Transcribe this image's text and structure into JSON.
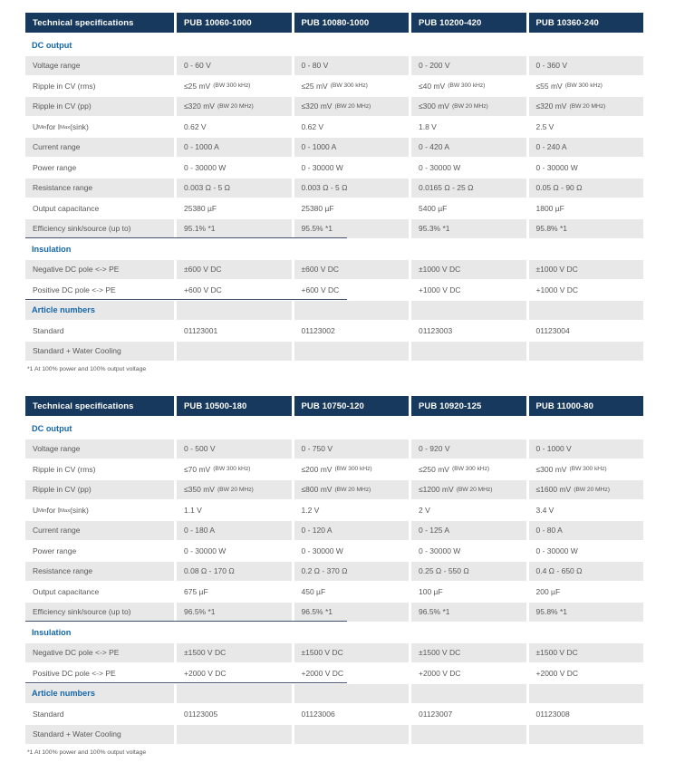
{
  "colors": {
    "header_bg": "#17395E",
    "section_text": "#1667A9",
    "body_text": "#58585A",
    "stripe_bg": "#E8E8E9",
    "rule_color": "#44536B"
  },
  "tables": [
    {
      "header": [
        "Technical specifications",
        "PUB 10060-1000",
        "PUB 10080-1000",
        "PUB 10200-420",
        "PUB 10360-240"
      ],
      "rows": [
        {
          "type": "section",
          "label": "DC output"
        },
        {
          "type": "data",
          "label": "Voltage range",
          "values": [
            "0 - 60 V",
            "0 - 80 V",
            "0 - 200 V",
            "0 - 360 V"
          ]
        },
        {
          "type": "data",
          "label": "Ripple in CV (rms)",
          "values": [
            {
              "v": "≤25 mV",
              "n": "(BW 300 kHz)"
            },
            {
              "v": "≤25 mV",
              "n": "(BW 300 kHz)"
            },
            {
              "v": "≤40 mV",
              "n": "(BW 300 kHz)"
            },
            {
              "v": "≤55 mV",
              "n": "(BW 300 kHz)"
            }
          ]
        },
        {
          "type": "data",
          "label": "Ripple in CV (pp)",
          "values": [
            {
              "v": "≤320 mV",
              "n": "(BW 20 MHz)"
            },
            {
              "v": "≤320 mV",
              "n": "(BW 20 MHz)"
            },
            {
              "v": "≤300 mV",
              "n": "(BW 20 MHz)"
            },
            {
              "v": "≤320 mV",
              "n": "(BW 20 MHz)"
            }
          ]
        },
        {
          "type": "data",
          "label_rich": [
            {
              "t": "U"
            },
            {
              "s": "Min"
            },
            {
              "t": " for I"
            },
            {
              "s": "Max"
            },
            {
              "t": " (sink)"
            }
          ],
          "values": [
            "0.62 V",
            "0.62 V",
            "1.8 V",
            "2.5 V"
          ]
        },
        {
          "type": "data",
          "label": "Current range",
          "values": [
            "0 - 1000 A",
            "0 - 1000 A",
            "0 - 420 A",
            "0 - 240 A"
          ]
        },
        {
          "type": "data",
          "label": "Power range",
          "values": [
            "0 - 30000 W",
            "0 - 30000 W",
            "0 - 30000 W",
            "0 - 30000 W"
          ]
        },
        {
          "type": "data",
          "label": "Resistance range",
          "values": [
            "0.003 Ω - 5 Ω",
            "0.003 Ω - 5 Ω",
            "0.0165 Ω - 25 Ω",
            "0.05 Ω - 90 Ω"
          ]
        },
        {
          "type": "data",
          "label": "Output capacitance",
          "values": [
            "25380 µF",
            "25380 µF",
            "5400 µF",
            "1800 µF"
          ]
        },
        {
          "type": "data",
          "label": "Efficiency sink/source (up to)",
          "values": [
            "95.1% *1",
            "95.5% *1",
            "95.3% *1",
            "95.8% *1"
          ]
        },
        {
          "type": "section",
          "label": "Insulation",
          "rule": true
        },
        {
          "type": "data",
          "label": "Negative DC pole <-> PE",
          "values": [
            "±600 V DC",
            "±600 V DC",
            "±1000 V DC",
            "±1000 V DC"
          ]
        },
        {
          "type": "data",
          "label": "Positive DC pole <-> PE",
          "values": [
            "+600 V DC",
            "+600 V DC",
            "+1000 V DC",
            "+1000 V DC"
          ]
        },
        {
          "type": "section",
          "label": "Article numbers",
          "rule": true
        },
        {
          "type": "data",
          "label": "Standard",
          "values": [
            "01123001",
            "01123002",
            "01123003",
            "01123004"
          ]
        },
        {
          "type": "data",
          "label": "Standard + Water Cooling",
          "values": [
            "",
            "",
            "",
            ""
          ]
        }
      ],
      "footnote": "*1 At 100% power and 100% output voltage"
    },
    {
      "header": [
        "Technical specifications",
        "PUB 10500-180",
        "PUB 10750-120",
        "PUB 10920-125",
        "PUB 11000-80"
      ],
      "rows": [
        {
          "type": "section",
          "label": "DC output"
        },
        {
          "type": "data",
          "label": "Voltage range",
          "values": [
            "0 - 500 V",
            "0 - 750 V",
            "0 - 920 V",
            "0 - 1000 V"
          ]
        },
        {
          "type": "data",
          "label": "Ripple in CV (rms)",
          "values": [
            {
              "v": "≤70 mV",
              "n": "(BW 300 kHz)"
            },
            {
              "v": "≤200 mV",
              "n": "(BW 300 kHz)"
            },
            {
              "v": "≤250 mV",
              "n": "(BW 300 kHz)"
            },
            {
              "v": "≤300 mV",
              "n": "(BW 300 kHz)"
            }
          ]
        },
        {
          "type": "data",
          "label": "Ripple in CV (pp)",
          "values": [
            {
              "v": "≤350 mV",
              "n": "(BW 20 MHz)"
            },
            {
              "v": "≤800 mV",
              "n": "(BW 20 MHz)"
            },
            {
              "v": "≤1200 mV",
              "n": "(BW 20 MHz)"
            },
            {
              "v": "≤1600 mV",
              "n": "(BW 20 MHz)"
            }
          ]
        },
        {
          "type": "data",
          "label_rich": [
            {
              "t": "U"
            },
            {
              "s": "Min"
            },
            {
              "t": " for I"
            },
            {
              "s": "Max"
            },
            {
              "t": " (sink)"
            }
          ],
          "values": [
            "1.1 V",
            "1.2 V",
            "2 V",
            "3.4 V"
          ]
        },
        {
          "type": "data",
          "label": "Current range",
          "values": [
            "0 - 180 A",
            "0 - 120 A",
            "0 - 125 A",
            "0 - 80 A"
          ]
        },
        {
          "type": "data",
          "label": "Power range",
          "values": [
            "0 - 30000 W",
            "0 - 30000 W",
            "0 - 30000 W",
            "0 - 30000 W"
          ]
        },
        {
          "type": "data",
          "label": "Resistance range",
          "values": [
            "0.08 Ω - 170 Ω",
            "0.2 Ω - 370 Ω",
            "0.25 Ω - 550 Ω",
            "0.4 Ω - 650 Ω"
          ]
        },
        {
          "type": "data",
          "label": "Output capacitance",
          "values": [
            "675 µF",
            "450 µF",
            "100 µF",
            "200 µF"
          ]
        },
        {
          "type": "data",
          "label": "Efficiency sink/source (up to)",
          "values": [
            "96.5% *1",
            "96.5% *1",
            "96.5% *1",
            "95.8% *1"
          ]
        },
        {
          "type": "section",
          "label": "Insulation",
          "rule": true
        },
        {
          "type": "data",
          "label": "Negative DC pole <-> PE",
          "values": [
            "±1500 V DC",
            "±1500 V DC",
            "±1500 V DC",
            "±1500 V DC"
          ]
        },
        {
          "type": "data",
          "label": "Positive DC pole <-> PE",
          "values": [
            "+2000 V DC",
            "+2000 V DC",
            "+2000 V DC",
            "+2000 V DC"
          ]
        },
        {
          "type": "section",
          "label": "Article numbers",
          "rule": true
        },
        {
          "type": "data",
          "label": "Standard",
          "values": [
            "01123005",
            "01123006",
            "01123007",
            "01123008"
          ]
        },
        {
          "type": "data",
          "label": "Standard + Water Cooling",
          "values": [
            "",
            "",
            "",
            ""
          ]
        }
      ],
      "footnote": "*1 At 100% power and 100% output voltage"
    }
  ]
}
